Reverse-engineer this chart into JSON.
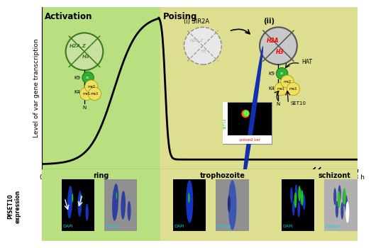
{
  "title_activation": "Activation",
  "title_poising": "Poising",
  "ylabel_top": "Level of var gene transcription",
  "ylabel_bottom": "PfSET10\nexpression",
  "bg_green": "#b8e080",
  "bg_yellow": "#dede90",
  "curve_color": "#000000",
  "dapi_label": "DAPI",
  "merge_label": "merge",
  "set10_label": "SET10",
  "poised_var_label": "poised var",
  "sir2a_label": "(i) SIR2A",
  "ii_label": "(ii)",
  "hat_label": "HAT",
  "set10_arrow_label": "SET10",
  "h2az_label": "H2A.Z",
  "h3_label": "H3",
  "h2a_label": "H2A",
  "h3_red_label": "H3",
  "k9_label": "K9",
  "k4_label": "K4",
  "n_label": "N",
  "ac_label": "ac",
  "me1_label": "me1",
  "me2_label": "me2",
  "me3_label": "me3",
  "stage_ring": "ring",
  "stage_tropho": "trophozoite",
  "stage_schizont": "schizont",
  "nuc_act_facecolor": "#c8e0a0",
  "nuc_act_edgecolor": "#3a7a20",
  "nuc_i_facecolor": "#e8e8e8",
  "nuc_i_edgecolor": "#888888",
  "nuc_ii_facecolor": "#c8c8c8",
  "nuc_ii_edgecolor": "#555555",
  "green_dot": "#30b030",
  "yellow_dot": "#f0e060"
}
